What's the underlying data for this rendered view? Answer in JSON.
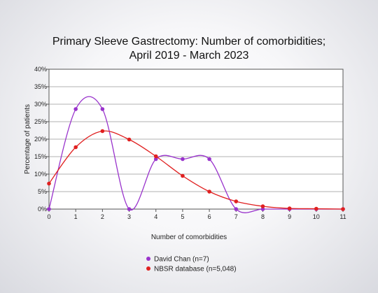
{
  "chart_data": {
    "type": "line",
    "title_line1": "Primary Sleeve Gastrectomy: Number of comorbidities;",
    "title_line2": "April 2019 - March 2023",
    "xlabel": "Number of comorbidities",
    "ylabel": "Percentage of patients",
    "x": [
      0,
      1,
      2,
      3,
      4,
      5,
      6,
      7,
      8,
      9,
      10,
      11
    ],
    "xlim": [
      0,
      11
    ],
    "ylim": [
      0,
      40
    ],
    "yticks": [
      "0%",
      "5%",
      "10%",
      "15%",
      "20%",
      "25%",
      "30%",
      "35%",
      "40%"
    ],
    "xticks": [
      "0",
      "1",
      "2",
      "3",
      "4",
      "5",
      "6",
      "7",
      "8",
      "9",
      "10",
      "11"
    ],
    "grid": "horizontal",
    "legend_position": "bottom",
    "series": [
      {
        "name": "David Chan (n=7)",
        "color": "#9933cc",
        "values": [
          0,
          28.6,
          28.6,
          0,
          14.3,
          14.3,
          14.3,
          0,
          0,
          0,
          0,
          0
        ]
      },
      {
        "name": "NBSR database (n=5,048)",
        "color": "#e02020",
        "values": [
          7.3,
          17.7,
          22.3,
          19.9,
          15.1,
          9.5,
          5.0,
          2.2,
          0.8,
          0.2,
          0.1,
          0.0
        ]
      }
    ]
  }
}
